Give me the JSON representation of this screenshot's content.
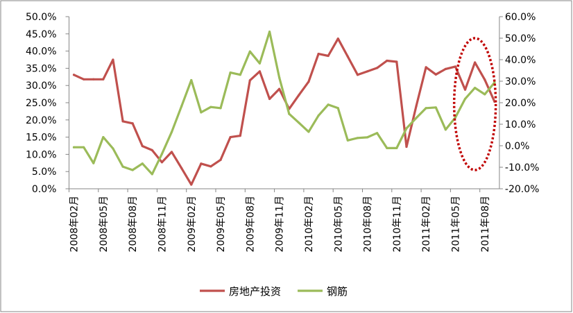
{
  "chart_data": {
    "type": "line",
    "title": "",
    "x_tick_labels": [
      "2008年02月",
      "2008年05月",
      "2008年08月",
      "2008年11月",
      "2009年02月",
      "2009年05月",
      "2009年08月",
      "2009年11月",
      "2010年02月",
      "2010年05月",
      "2010年08月",
      "2010年11月",
      "2011年02月",
      "2011年05月",
      "2011年08月"
    ],
    "point_count": 44,
    "left_axis": {
      "ylim": [
        0,
        50
      ],
      "ticks": [
        "0.0%",
        "5.0%",
        "10.0%",
        "15.0%",
        "20.0%",
        "25.0%",
        "30.0%",
        "35.0%",
        "40.0%",
        "45.0%",
        "50.0%"
      ]
    },
    "right_axis": {
      "ylim": [
        -20,
        60
      ],
      "ticks": [
        "-20.0%",
        "-10.0%",
        "0.0%",
        "10.0%",
        "20.0%",
        "30.0%",
        "40.0%",
        "50.0%",
        "60.0%"
      ]
    },
    "legend_position": "bottom",
    "series": [
      {
        "name": "房地产投资",
        "axis": "left",
        "color": "#C0504D",
        "values": [
          33.1,
          31.8,
          31.8,
          31.8,
          37.5,
          19.6,
          19.0,
          12.4,
          11.2,
          7.7,
          10.7,
          6.0,
          1.2,
          7.3,
          6.5,
          8.4,
          15.0,
          15.4,
          31.5,
          34.1,
          26.1,
          29.0,
          23.2,
          27.2,
          31.1,
          39.2,
          38.6,
          43.6,
          38.4,
          33.1,
          34.1,
          35.1,
          37.2,
          36.9,
          12.2,
          24.0,
          35.3,
          33.2,
          34.8,
          35.5,
          28.8,
          36.7,
          31.7,
          25.3
        ]
      },
      {
        "name": "钢筋",
        "axis": "right",
        "color": "#9BBB59",
        "values": [
          -0.7,
          -0.7,
          -8.1,
          4.0,
          -1.3,
          -9.7,
          -11.3,
          -8.3,
          -13.2,
          -3.8,
          6.4,
          18.3,
          30.5,
          15.5,
          18.0,
          17.5,
          34.0,
          33.0,
          43.8,
          38.3,
          53.0,
          31.7,
          14.8,
          10.7,
          6.5,
          14.0,
          19.1,
          17.5,
          2.5,
          3.6,
          3.9,
          5.9,
          -1.1,
          -1.1,
          8.1,
          12.9,
          17.5,
          17.8,
          7.5,
          13.1,
          21.8,
          26.9,
          23.9,
          29.4
        ]
      }
    ],
    "annotation": {
      "type": "dotted-ellipse",
      "color": "#C00000",
      "covers_points": [
        39,
        43
      ]
    }
  }
}
